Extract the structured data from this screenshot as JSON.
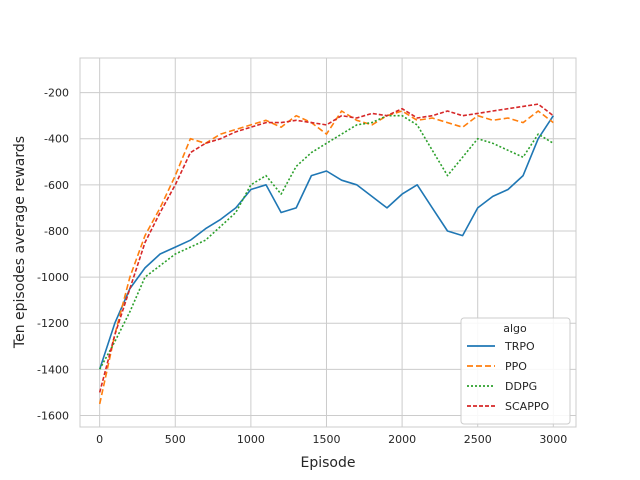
{
  "chart_data": {
    "type": "line",
    "title": "",
    "xlabel": "Episode",
    "ylabel": "Ten episodes average rewards",
    "xlim": [
      -130,
      3150
    ],
    "ylim": [
      -1650,
      -50
    ],
    "x_ticks": [
      0,
      500,
      1000,
      1500,
      2000,
      2500,
      3000
    ],
    "x_tick_labels": [
      "0",
      "500",
      "1000",
      "1500",
      "2000",
      "2500",
      "3000"
    ],
    "y_ticks": [
      -1600,
      -1400,
      -1200,
      -1000,
      -800,
      -600,
      -400,
      -200
    ],
    "y_tick_labels": [
      "-1600",
      "-1400",
      "-1200",
      "-1000",
      "-800",
      "-600",
      "-400",
      "-200"
    ],
    "grid": true,
    "legend": {
      "title": "algo",
      "location": "lower-right"
    },
    "series": [
      {
        "name": "TRPO",
        "color": "#1f77b4",
        "dash": "solid",
        "x": [
          0,
          100,
          200,
          300,
          400,
          500,
          600,
          700,
          800,
          900,
          1000,
          1100,
          1200,
          1300,
          1400,
          1500,
          1600,
          1700,
          1800,
          1900,
          2000,
          2100,
          2200,
          2300,
          2400,
          2500,
          2600,
          2700,
          2800,
          2900,
          3000
        ],
        "y": [
          -1400,
          -1200,
          -1050,
          -960,
          -900,
          -870,
          -840,
          -790,
          -750,
          -700,
          -620,
          -600,
          -720,
          -700,
          -560,
          -540,
          -580,
          -600,
          -650,
          -700,
          -640,
          -600,
          -700,
          -800,
          -820,
          -700,
          -650,
          -620,
          -560,
          -400,
          -300
        ]
      },
      {
        "name": "PPO",
        "color": "#ff7f0e",
        "dash": "6,3",
        "x": [
          0,
          100,
          200,
          300,
          400,
          500,
          600,
          700,
          800,
          900,
          1000,
          1100,
          1200,
          1300,
          1400,
          1500,
          1600,
          1700,
          1800,
          1900,
          2000,
          2100,
          2200,
          2300,
          2400,
          2500,
          2600,
          2700,
          2800,
          2900,
          3000
        ],
        "y": [
          -1550,
          -1250,
          -1000,
          -820,
          -700,
          -560,
          -400,
          -420,
          -380,
          -360,
          -340,
          -320,
          -350,
          -300,
          -330,
          -380,
          -280,
          -320,
          -340,
          -300,
          -280,
          -320,
          -310,
          -330,
          -350,
          -300,
          -320,
          -310,
          -330,
          -280,
          -330
        ]
      },
      {
        "name": "DDPG",
        "color": "#2ca02c",
        "dash": "2,2",
        "x": [
          0,
          100,
          200,
          300,
          400,
          500,
          600,
          700,
          800,
          900,
          1000,
          1100,
          1200,
          1300,
          1400,
          1500,
          1600,
          1700,
          1800,
          1900,
          2000,
          2100,
          2200,
          2300,
          2400,
          2500,
          2600,
          2700,
          2800,
          2900,
          3000
        ],
        "y": [
          -1400,
          -1280,
          -1150,
          -1000,
          -950,
          -900,
          -870,
          -840,
          -780,
          -720,
          -600,
          -560,
          -640,
          -520,
          -460,
          -420,
          -380,
          -340,
          -330,
          -300,
          -300,
          -340,
          -450,
          -560,
          -480,
          -400,
          -420,
          -450,
          -480,
          -380,
          -420
        ]
      },
      {
        "name": "SCAPPO",
        "color": "#d62728",
        "dash": "4,2",
        "x": [
          0,
          100,
          200,
          300,
          400,
          500,
          600,
          700,
          800,
          900,
          1000,
          1100,
          1200,
          1300,
          1400,
          1500,
          1600,
          1700,
          1800,
          1900,
          2000,
          2100,
          2200,
          2300,
          2400,
          2500,
          2600,
          2700,
          2800,
          2900,
          3000
        ],
        "y": [
          -1500,
          -1250,
          -1050,
          -850,
          -720,
          -600,
          -460,
          -420,
          -400,
          -370,
          -350,
          -330,
          -330,
          -320,
          -330,
          -340,
          -300,
          -310,
          -290,
          -300,
          -270,
          -310,
          -300,
          -280,
          -300,
          -290,
          -280,
          -270,
          -260,
          -250,
          -300
        ]
      }
    ]
  }
}
